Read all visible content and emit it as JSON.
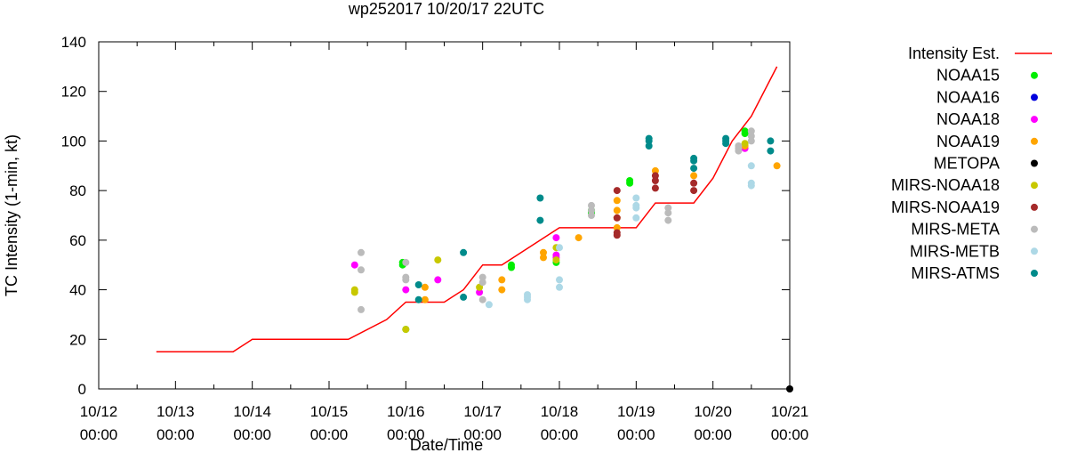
{
  "chart_data": {
    "type": "scatter",
    "title": "wp252017 10/20/17 22UTC",
    "xlabel": "Date/Time",
    "ylabel": "TC Intensity (1-min, kt)",
    "xlim": [
      "10/12 00:00",
      "10/21 00:00"
    ],
    "ylim": [
      0,
      140
    ],
    "x_ticks": [
      {
        "date": "10/12",
        "time": "00:00"
      },
      {
        "date": "10/13",
        "time": "00:00"
      },
      {
        "date": "10/14",
        "time": "00:00"
      },
      {
        "date": "10/15",
        "time": "00:00"
      },
      {
        "date": "10/16",
        "time": "00:00"
      },
      {
        "date": "10/17",
        "time": "00:00"
      },
      {
        "date": "10/18",
        "time": "00:00"
      },
      {
        "date": "10/19",
        "time": "00:00"
      },
      {
        "date": "10/20",
        "time": "00:00"
      },
      {
        "date": "10/21",
        "time": "00:00"
      }
    ],
    "y_ticks": [
      "0",
      "20",
      "40",
      "60",
      "80",
      "100",
      "120",
      "140"
    ],
    "grid": false,
    "legend_position": "right",
    "series": [
      {
        "name": "Intensity Est.",
        "kind": "line",
        "color": "#ff0000",
        "points": [
          [
            "10/12 18:00",
            15
          ],
          [
            "10/13 18:00",
            15
          ],
          [
            "10/14 00:00",
            20
          ],
          [
            "10/15 06:00",
            20
          ],
          [
            "10/15 18:00",
            28
          ],
          [
            "10/16 00:00",
            35
          ],
          [
            "10/16 12:00",
            35
          ],
          [
            "10/16 18:00",
            40
          ],
          [
            "10/17 00:00",
            50
          ],
          [
            "10/17 06:00",
            50
          ],
          [
            "10/18 00:00",
            65
          ],
          [
            "10/19 00:00",
            65
          ],
          [
            "10/19 06:00",
            75
          ],
          [
            "10/19 18:00",
            75
          ],
          [
            "10/20 00:00",
            85
          ],
          [
            "10/20 06:00",
            100
          ],
          [
            "10/20 12:00",
            110
          ],
          [
            "10/20 20:00",
            130
          ]
        ]
      },
      {
        "name": "NOAA15",
        "kind": "points",
        "color": "#00ee00",
        "points": [
          [
            "10/15 23:00",
            51
          ],
          [
            "10/15 23:00",
            50
          ],
          [
            "10/16 00:00",
            24
          ],
          [
            "10/17 09:00",
            50
          ],
          [
            "10/17 09:00",
            49
          ],
          [
            "10/17 23:00",
            51
          ],
          [
            "10/18 10:00",
            72
          ],
          [
            "10/18 10:00",
            71
          ],
          [
            "10/18 22:00",
            84
          ],
          [
            "10/18 22:00",
            83
          ],
          [
            "10/20 10:00",
            104
          ],
          [
            "10/20 10:00",
            103
          ]
        ]
      },
      {
        "name": "NOAA16",
        "kind": "points",
        "color": "#0000dd",
        "points": []
      },
      {
        "name": "NOAA18",
        "kind": "points",
        "color": "#ff00ff",
        "points": [
          [
            "10/15 08:00",
            50
          ],
          [
            "10/16 00:00",
            40
          ],
          [
            "10/16 10:00",
            44
          ],
          [
            "10/16 23:00",
            39
          ],
          [
            "10/17 23:00",
            61
          ],
          [
            "10/17 23:00",
            54
          ],
          [
            "10/17 23:00",
            53
          ],
          [
            "10/20 10:00",
            97
          ]
        ]
      },
      {
        "name": "NOAA19",
        "kind": "points",
        "color": "#ffa500",
        "points": [
          [
            "10/16 06:00",
            41
          ],
          [
            "10/16 06:00",
            36
          ],
          [
            "10/17 06:00",
            44
          ],
          [
            "10/17 06:00",
            40
          ],
          [
            "10/17 19:00",
            55
          ],
          [
            "10/17 19:00",
            53
          ],
          [
            "10/18 06:00",
            61
          ],
          [
            "10/18 18:00",
            76
          ],
          [
            "10/18 18:00",
            72
          ],
          [
            "10/18 18:00",
            69
          ],
          [
            "10/18 18:00",
            65
          ],
          [
            "10/19 06:00",
            88
          ],
          [
            "10/19 18:00",
            86
          ],
          [
            "10/20 10:00",
            98
          ],
          [
            "10/20 20:00",
            90
          ]
        ]
      },
      {
        "name": "METOPA",
        "kind": "points",
        "color": "#000000",
        "points": [
          [
            "10/21 00:00",
            0
          ]
        ]
      },
      {
        "name": "MIRS-NOAA18",
        "kind": "points",
        "color": "#c8c800",
        "points": [
          [
            "10/15 08:00",
            40
          ],
          [
            "10/15 08:00",
            39
          ],
          [
            "10/16 00:00",
            24
          ],
          [
            "10/16 10:00",
            52
          ],
          [
            "10/16 23:00",
            41
          ],
          [
            "10/17 23:00",
            57
          ],
          [
            "10/17 23:00",
            52
          ],
          [
            "10/20 10:00",
            99
          ]
        ]
      },
      {
        "name": "MIRS-NOAA19",
        "kind": "points",
        "color": "#a52a2a",
        "points": [
          [
            "10/18 18:00",
            80
          ],
          [
            "10/18 18:00",
            69
          ],
          [
            "10/18 18:00",
            63
          ],
          [
            "10/18 18:00",
            62
          ],
          [
            "10/19 06:00",
            86
          ],
          [
            "10/19 06:00",
            84
          ],
          [
            "10/19 06:00",
            81
          ],
          [
            "10/19 18:00",
            83
          ],
          [
            "10/19 18:00",
            80
          ]
        ]
      },
      {
        "name": "MIRS-META",
        "kind": "points",
        "color": "#bbbbbb",
        "points": [
          [
            "10/15 10:00",
            55
          ],
          [
            "10/15 10:00",
            48
          ],
          [
            "10/15 10:00",
            32
          ],
          [
            "10/16 00:00",
            51
          ],
          [
            "10/16 00:00",
            45
          ],
          [
            "10/16 00:00",
            44
          ],
          [
            "10/17 00:00",
            45
          ],
          [
            "10/17 00:00",
            43
          ],
          [
            "10/17 00:00",
            36
          ],
          [
            "10/18 10:00",
            74
          ],
          [
            "10/18 10:00",
            72
          ],
          [
            "10/18 10:00",
            70
          ],
          [
            "10/19 10:00",
            73
          ],
          [
            "10/19 10:00",
            71
          ],
          [
            "10/19 10:00",
            68
          ],
          [
            "10/20 08:00",
            98
          ],
          [
            "10/20 08:00",
            97
          ],
          [
            "10/20 08:00",
            96
          ],
          [
            "10/20 12:00",
            104
          ],
          [
            "10/20 12:00",
            102
          ],
          [
            "10/20 12:00",
            100
          ]
        ]
      },
      {
        "name": "MIRS-METB",
        "kind": "points",
        "color": "#add8e6",
        "points": [
          [
            "10/17 02:00",
            34
          ],
          [
            "10/17 14:00",
            38
          ],
          [
            "10/17 14:00",
            37
          ],
          [
            "10/17 14:00",
            36
          ],
          [
            "10/18 00:00",
            57
          ],
          [
            "10/18 00:00",
            44
          ],
          [
            "10/18 00:00",
            41
          ],
          [
            "10/19 00:00",
            77
          ],
          [
            "10/19 00:00",
            74
          ],
          [
            "10/19 00:00",
            73
          ],
          [
            "10/19 00:00",
            69
          ],
          [
            "10/20 12:00",
            90
          ],
          [
            "10/20 12:00",
            83
          ],
          [
            "10/20 12:00",
            82
          ]
        ]
      },
      {
        "name": "MIRS-ATMS",
        "kind": "points",
        "color": "#008b8b",
        "points": [
          [
            "10/16 04:00",
            42
          ],
          [
            "10/16 04:00",
            36
          ],
          [
            "10/16 18:00",
            55
          ],
          [
            "10/16 18:00",
            37
          ],
          [
            "10/17 18:00",
            77
          ],
          [
            "10/17 18:00",
            68
          ],
          [
            "10/19 04:00",
            101
          ],
          [
            "10/19 04:00",
            100
          ],
          [
            "10/19 04:00",
            98
          ],
          [
            "10/19 18:00",
            93
          ],
          [
            "10/19 18:00",
            92
          ],
          [
            "10/19 18:00",
            89
          ],
          [
            "10/20 04:00",
            101
          ],
          [
            "10/20 04:00",
            100
          ],
          [
            "10/20 04:00",
            99
          ],
          [
            "10/20 18:00",
            100
          ],
          [
            "10/20 18:00",
            96
          ]
        ]
      }
    ]
  }
}
